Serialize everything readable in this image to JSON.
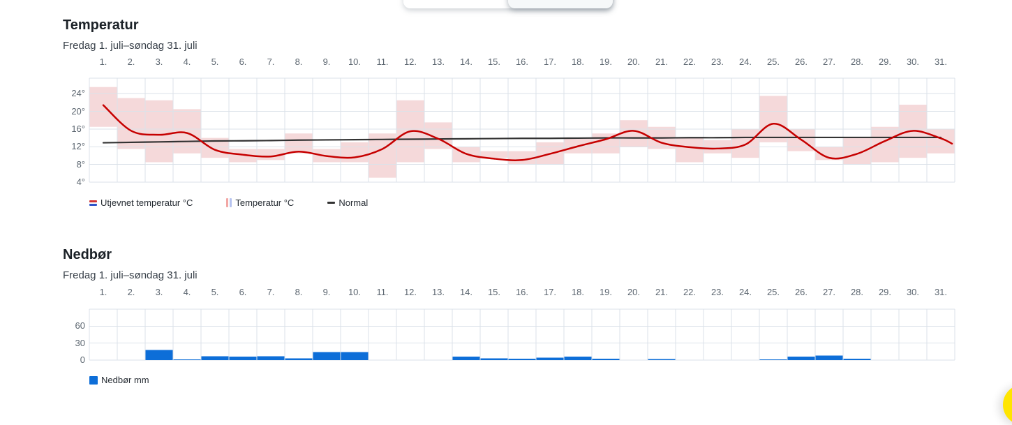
{
  "temperature": {
    "title": "Temperatur",
    "subtitle": "Fredag 1. juli–søndag 31. juli",
    "legend": [
      {
        "label": "Utjevnet temperatur °C"
      },
      {
        "label": "Temperatur °C"
      },
      {
        "label": "Normal"
      }
    ]
  },
  "precipitation": {
    "title": "Nedbør",
    "subtitle": "Fredag 1. juli–søndag 31. juli",
    "legend": [
      {
        "label": "Nedbør mm"
      }
    ]
  },
  "colors": {
    "smoothed_line": "#c60000",
    "temp_band": "#f5d9da",
    "normal_line": "#333333",
    "precip_bar": "#0d6ed8",
    "grid": "#dbe2e9",
    "axis_text": "#5c6670",
    "chat_button": "#ffe500",
    "legend_icon_smoothed_top": "#d23535",
    "legend_icon_smoothed_bottom": "#2f54c9",
    "legend_icon_range_left": "#f2a7a4",
    "legend_icon_range_right": "#b7c4f0"
  },
  "chart_data": [
    {
      "id": "temperature",
      "type": "line",
      "title": "Temperatur",
      "subtitle": "Fredag 1. juli–søndag 31. juli",
      "x_tick_labels": [
        "1.",
        "2.",
        "3.",
        "4.",
        "5.",
        "6.",
        "7.",
        "8.",
        "9.",
        "10.",
        "11.",
        "12.",
        "13.",
        "14.",
        "15.",
        "16.",
        "17.",
        "18.",
        "19.",
        "20.",
        "21.",
        "22.",
        "23.",
        "24.",
        "25.",
        "26.",
        "27.",
        "28.",
        "29.",
        "30.",
        "31."
      ],
      "y_tick_labels": [
        "24°",
        "20°",
        "16°",
        "12°",
        "8°",
        "4°"
      ],
      "y_ticks": [
        24,
        20,
        16,
        12,
        8,
        4
      ],
      "ylim": [
        4,
        27.5
      ],
      "grid": true,
      "legend_position": "bottom",
      "series": [
        {
          "name": "Temperatur °C",
          "type": "column-range",
          "color": "#f5d9da",
          "min": [
            16.5,
            11.5,
            8.5,
            10.5,
            9.5,
            8.5,
            9,
            10.5,
            8.5,
            8.5,
            5,
            8.5,
            11.5,
            8.5,
            9.5,
            8,
            8,
            10.5,
            10.5,
            12,
            11.5,
            8.5,
            10.5,
            9.5,
            13,
            11,
            9,
            8,
            8.5,
            9.5,
            10.5
          ],
          "max": [
            25.5,
            23,
            22.5,
            20.5,
            14,
            11.5,
            11.5,
            15,
            11.5,
            13,
            15,
            22.5,
            17.5,
            12,
            11,
            11,
            13,
            14,
            15,
            18,
            16.5,
            14,
            13.5,
            16,
            23.5,
            16,
            12,
            14,
            16.5,
            21.5,
            16
          ]
        },
        {
          "name": "Utjevnet temperatur °C",
          "type": "smoothed-line",
          "color": "#c60000",
          "x": [
            1,
            2,
            3,
            4,
            5,
            6,
            7,
            8,
            9,
            10,
            11,
            12,
            13,
            14,
            15,
            16,
            17,
            18,
            19,
            20,
            21,
            22,
            23,
            24,
            25,
            26,
            27,
            28,
            29,
            30,
            31,
            31.4
          ],
          "values": [
            21.4,
            15.6,
            14.7,
            15.1,
            11.3,
            10.2,
            9.8,
            10.9,
            9.9,
            9.6,
            11.5,
            15.5,
            13.8,
            10.4,
            9.3,
            9,
            10.4,
            12.1,
            13.7,
            15.6,
            12.9,
            11.9,
            11.6,
            12.5,
            17.2,
            13.6,
            9.5,
            10.4,
            13.3,
            15.6,
            13.9,
            12.7
          ]
        },
        {
          "name": "Normal",
          "type": "line",
          "color": "#333333",
          "values": [
            12.9,
            13,
            13.1,
            13.2,
            13.3,
            13.35,
            13.4,
            13.5,
            13.55,
            13.6,
            13.65,
            13.7,
            13.75,
            13.8,
            13.85,
            13.9,
            13.9,
            13.95,
            14,
            14,
            14,
            14.05,
            14.05,
            14.1,
            14.1,
            14.1,
            14.1,
            14.1,
            14.1,
            14.1,
            14.1
          ]
        }
      ]
    },
    {
      "id": "precipitation",
      "type": "bar",
      "title": "Nedbør",
      "subtitle": "Fredag 1. juli–søndag 31. juli",
      "x_tick_labels": [
        "1.",
        "2.",
        "3.",
        "4.",
        "5.",
        "6.",
        "7.",
        "8.",
        "9.",
        "10.",
        "11.",
        "12.",
        "13.",
        "14.",
        "15.",
        "16.",
        "17.",
        "18.",
        "19.",
        "20.",
        "21.",
        "22.",
        "23.",
        "24.",
        "25.",
        "26.",
        "27.",
        "28.",
        "29.",
        "30.",
        "31."
      ],
      "y_tick_labels": [
        "60",
        "30",
        "0"
      ],
      "y_ticks": [
        60,
        30,
        0
      ],
      "ylim": [
        0,
        90
      ],
      "grid": true,
      "legend_position": "bottom",
      "series_name": "Nedbør mm",
      "values": [
        0,
        0,
        18,
        1,
        7,
        6,
        7,
        3,
        14,
        14,
        0,
        0,
        0,
        6,
        3,
        2.5,
        4.5,
        6,
        2.5,
        0,
        2,
        0,
        0,
        0,
        1,
        6,
        8,
        2.5,
        0,
        0,
        0
      ]
    }
  ]
}
